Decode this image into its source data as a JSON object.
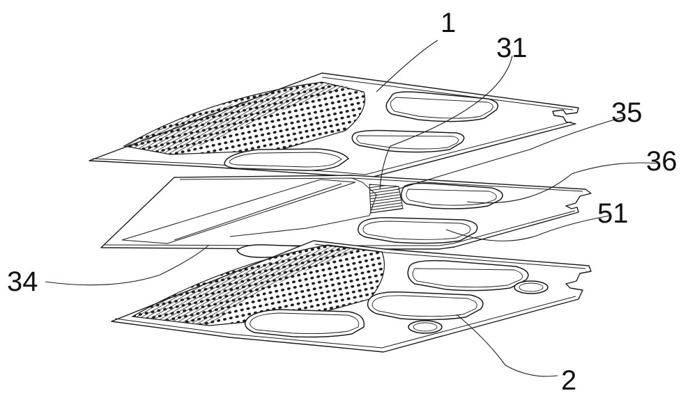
{
  "figure": {
    "reference_numerals": [
      "1",
      "31",
      "35",
      "36",
      "51",
      "34",
      "2"
    ]
  },
  "colors": {
    "line": "#1a1a1a",
    "background": "#ffffff"
  }
}
